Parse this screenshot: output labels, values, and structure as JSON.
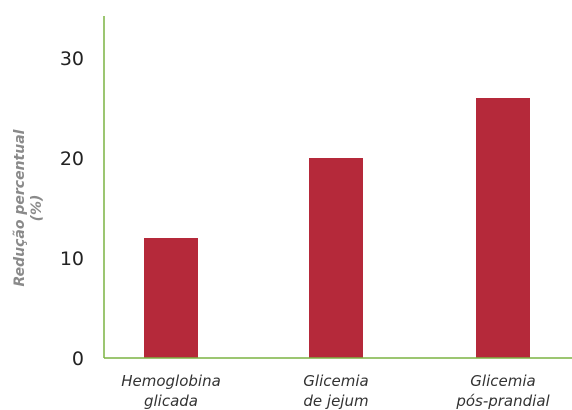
{
  "chart_data": {
    "type": "bar",
    "categories": [
      "Hemoglobina glicada",
      "Glicemia de jejum",
      "Glicemia pós-prandial"
    ],
    "category_lines": [
      [
        "Hemoglobina",
        "glicada"
      ],
      [
        "Glicemia",
        "de jejum"
      ],
      [
        "Glicemia",
        "pós-prandial"
      ]
    ],
    "values": [
      12,
      20,
      26
    ],
    "ylabel": "Redução percentual (%)",
    "ylabel_lines": [
      "Redução percentual",
      "(%)"
    ],
    "ylim": [
      0,
      30
    ],
    "yticks": [
      "0",
      "10",
      "20",
      "30"
    ],
    "grid": false,
    "colors": {
      "bar": "#b5293a",
      "axis": "#7cb342"
    }
  }
}
